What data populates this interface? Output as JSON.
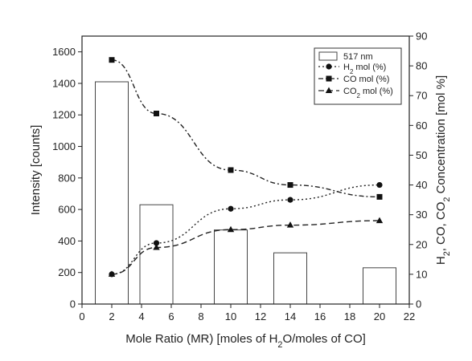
{
  "chart_data": {
    "type": "bar+line",
    "x_axis": {
      "label_parts": [
        "Mole Ratio (MR) [moles of H",
        "2",
        "O/moles of CO]"
      ],
      "range": [
        0,
        22
      ],
      "ticks": [
        0,
        2,
        4,
        6,
        8,
        10,
        12,
        14,
        16,
        18,
        20,
        22
      ]
    },
    "y_left": {
      "label": "Intensity [counts]",
      "range": [
        0,
        1700
      ],
      "ticks": [
        0,
        200,
        400,
        600,
        800,
        1000,
        1200,
        1400,
        1600
      ]
    },
    "y_right": {
      "label_parts": [
        "H",
        "2",
        ", CO, CO",
        "2",
        " Concentration [mol %]"
      ],
      "range": [
        0,
        90
      ],
      "ticks": [
        0,
        10,
        20,
        30,
        40,
        50,
        60,
        70,
        80,
        90
      ]
    },
    "bars": {
      "name": "517 nm",
      "axis": "left",
      "x": [
        2,
        5,
        10,
        14,
        20
      ],
      "values": [
        1410,
        630,
        470,
        325,
        230
      ],
      "color": "#ffffff",
      "stroke": "#444444"
    },
    "series": [
      {
        "name_parts": [
          "H",
          "2",
          " mol (%)"
        ],
        "axis": "right",
        "x": [
          2,
          5,
          10,
          14,
          20
        ],
        "values": [
          10,
          20.5,
          32,
          35,
          40
        ],
        "marker": "circle",
        "dash": "2,3"
      },
      {
        "name_parts": [
          "CO mol (%)"
        ],
        "axis": "right",
        "x": [
          2,
          5,
          10,
          14,
          20
        ],
        "values": [
          82,
          64,
          45,
          40,
          36
        ],
        "marker": "square",
        "dash": "6,3,2,3"
      },
      {
        "name_parts": [
          "CO",
          "2",
          " mol (%)"
        ],
        "axis": "right",
        "x": [
          2,
          5,
          10,
          14,
          20
        ],
        "values": [
          10,
          19,
          25,
          26.5,
          28
        ],
        "marker": "triangle",
        "dash": "7,4"
      }
    ],
    "legend_position": "top-right",
    "grid": false
  }
}
